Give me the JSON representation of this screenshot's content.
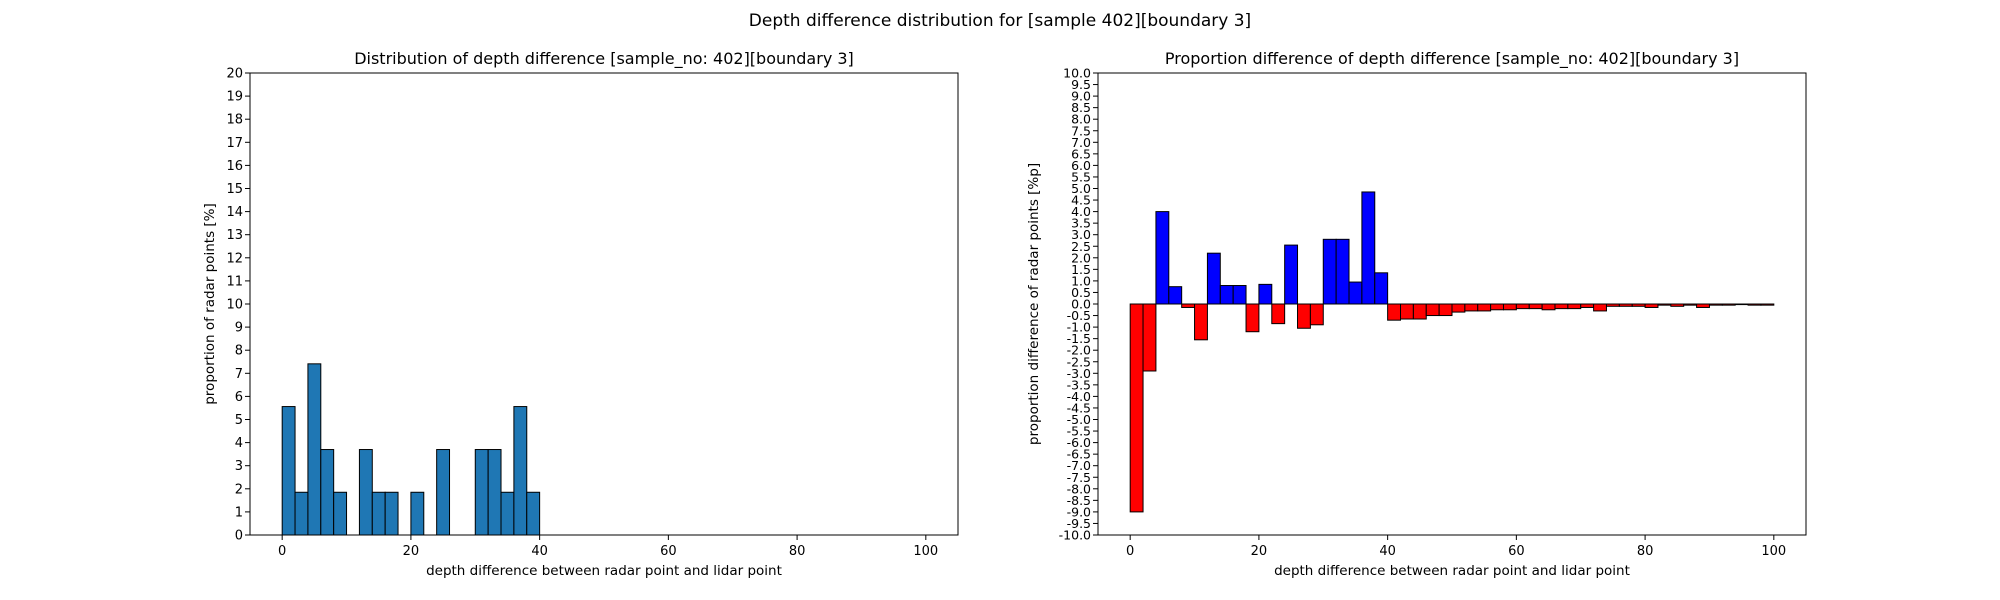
{
  "figure": {
    "suptitle": "Depth difference distribution for [sample 402][boundary 3]"
  },
  "chart_data": [
    {
      "type": "bar",
      "title": "Distribution of depth difference [sample_no: 402][boundary 3]",
      "xlabel": "depth difference between radar point and lidar point",
      "ylabel": "proportion of radar points [%]",
      "xlim": [
        -5,
        105
      ],
      "ylim": [
        0,
        20
      ],
      "xticks": [
        0,
        20,
        40,
        60,
        80,
        100
      ],
      "yticks": [
        0,
        1,
        2,
        3,
        4,
        5,
        6,
        7,
        8,
        9,
        10,
        11,
        12,
        13,
        14,
        15,
        16,
        17,
        18,
        19,
        20
      ],
      "bin_width": 2,
      "grid": false,
      "bar_color": "#1f77b4",
      "edge_color": "#000000",
      "bins_start": [
        0,
        2,
        4,
        6,
        8,
        12,
        14,
        16,
        20,
        24,
        30,
        32,
        34,
        36,
        38
      ],
      "values": [
        5.56,
        1.85,
        7.41,
        3.7,
        1.85,
        3.7,
        1.85,
        1.85,
        1.85,
        3.7,
        3.7,
        3.7,
        1.85,
        5.56,
        1.85
      ]
    },
    {
      "type": "bar",
      "title": "Proportion difference of depth difference [sample_no: 402][boundary 3]",
      "xlabel": "depth difference between radar point and lidar point",
      "ylabel": "proportion difference of radar points [%p]",
      "xlim": [
        -5,
        105
      ],
      "ylim": [
        -10,
        10
      ],
      "xticks": [
        0,
        20,
        40,
        60,
        80,
        100
      ],
      "ytick_step": 0.5,
      "bin_width": 2,
      "grid": false,
      "positive_color": "#0000ff",
      "negative_color": "#ff0000",
      "edge_color": "#000000",
      "bins_start": [
        0,
        2,
        4,
        6,
        8,
        10,
        12,
        14,
        16,
        18,
        20,
        22,
        24,
        26,
        28,
        30,
        32,
        34,
        36,
        38,
        40,
        42,
        44,
        46,
        48,
        50,
        52,
        54,
        56,
        58,
        60,
        62,
        64,
        66,
        68,
        70,
        72,
        74,
        76,
        78,
        80,
        82,
        84,
        86,
        88,
        90,
        92,
        94,
        96,
        98
      ],
      "values": [
        -9.0,
        -2.9,
        4.0,
        0.75,
        -0.15,
        -1.55,
        2.2,
        0.8,
        0.8,
        -1.2,
        0.85,
        -0.85,
        2.55,
        -1.05,
        -0.9,
        2.8,
        2.8,
        0.95,
        4.85,
        1.35,
        -0.7,
        -0.65,
        -0.65,
        -0.5,
        -0.5,
        -0.35,
        -0.3,
        -0.3,
        -0.25,
        -0.25,
        -0.2,
        -0.2,
        -0.25,
        -0.2,
        -0.2,
        -0.15,
        -0.3,
        -0.1,
        -0.1,
        -0.1,
        -0.15,
        -0.05,
        -0.1,
        -0.05,
        -0.15,
        -0.05,
        -0.05,
        0.0,
        -0.05,
        -0.05
      ]
    }
  ]
}
